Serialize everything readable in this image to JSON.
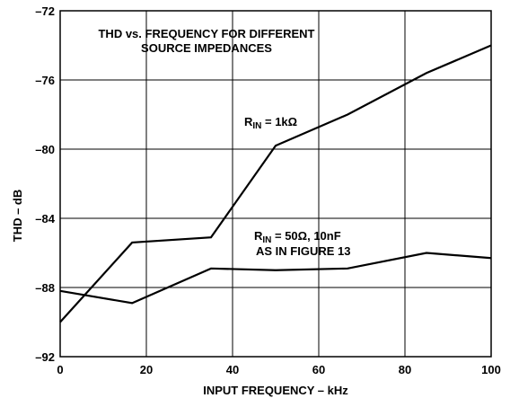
{
  "chart_data": {
    "type": "line",
    "title_lines": [
      "THD vs. FREQUENCY FOR DIFFERENT",
      "SOURCE IMPEDANCES"
    ],
    "xlabel": "INPUT FREQUENCY – kHz",
    "ylabel": "THD – dB",
    "xlim": [
      0,
      100
    ],
    "ylim": [
      -92,
      -72
    ],
    "xticks": [
      0,
      20,
      40,
      60,
      80,
      100
    ],
    "yticks": [
      -92,
      -88,
      -84,
      -80,
      -76,
      -72
    ],
    "xtick_labels": [
      "0",
      "20",
      "40",
      "60",
      "80",
      "100"
    ],
    "ytick_labels": [
      "–92",
      "–88",
      "–84",
      "–80",
      "–76",
      "–72"
    ],
    "grid": true,
    "series": [
      {
        "x": [
          0,
          16.7,
          35,
          50,
          66.7,
          85,
          100
        ],
        "y": [
          -90.0,
          -85.4,
          -85.1,
          -79.8,
          -78.0,
          -75.6,
          -74.0
        ]
      },
      {
        "x": [
          0,
          16.7,
          35,
          50,
          66.7,
          85,
          100
        ],
        "y": [
          -88.2,
          -88.9,
          -86.9,
          -87.0,
          -86.9,
          -86.0,
          -86.3
        ]
      }
    ],
    "annotations": [
      {
        "main": "R",
        "sub": "IN",
        "rest": " = 1kΩ"
      },
      {
        "main": "R",
        "sub": "IN",
        "rest": " = 50Ω, 10nF",
        "line2": "AS IN FIGURE 13"
      }
    ]
  }
}
